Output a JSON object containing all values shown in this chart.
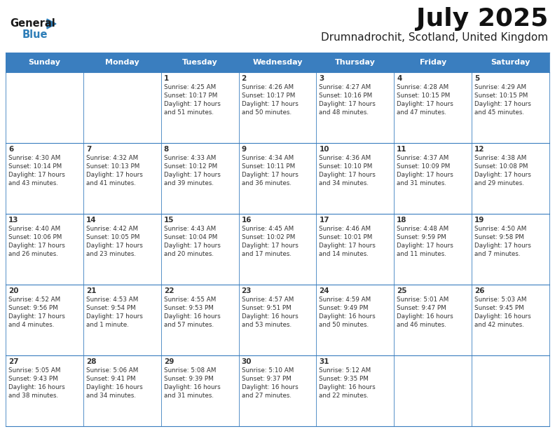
{
  "title": "July 2025",
  "subtitle": "Drumnadrochit, Scotland, United Kingdom",
  "header_color": "#3A7EBF",
  "header_text_color": "#FFFFFF",
  "bg_color": "#FFFFFF",
  "border_color": "#3A7EBF",
  "text_color": "#333333",
  "days_of_week": [
    "Sunday",
    "Monday",
    "Tuesday",
    "Wednesday",
    "Thursday",
    "Friday",
    "Saturday"
  ],
  "weeks": [
    [
      {
        "day": "",
        "info": ""
      },
      {
        "day": "",
        "info": ""
      },
      {
        "day": "1",
        "info": "Sunrise: 4:25 AM\nSunset: 10:17 PM\nDaylight: 17 hours\nand 51 minutes."
      },
      {
        "day": "2",
        "info": "Sunrise: 4:26 AM\nSunset: 10:17 PM\nDaylight: 17 hours\nand 50 minutes."
      },
      {
        "day": "3",
        "info": "Sunrise: 4:27 AM\nSunset: 10:16 PM\nDaylight: 17 hours\nand 48 minutes."
      },
      {
        "day": "4",
        "info": "Sunrise: 4:28 AM\nSunset: 10:15 PM\nDaylight: 17 hours\nand 47 minutes."
      },
      {
        "day": "5",
        "info": "Sunrise: 4:29 AM\nSunset: 10:15 PM\nDaylight: 17 hours\nand 45 minutes."
      }
    ],
    [
      {
        "day": "6",
        "info": "Sunrise: 4:30 AM\nSunset: 10:14 PM\nDaylight: 17 hours\nand 43 minutes."
      },
      {
        "day": "7",
        "info": "Sunrise: 4:32 AM\nSunset: 10:13 PM\nDaylight: 17 hours\nand 41 minutes."
      },
      {
        "day": "8",
        "info": "Sunrise: 4:33 AM\nSunset: 10:12 PM\nDaylight: 17 hours\nand 39 minutes."
      },
      {
        "day": "9",
        "info": "Sunrise: 4:34 AM\nSunset: 10:11 PM\nDaylight: 17 hours\nand 36 minutes."
      },
      {
        "day": "10",
        "info": "Sunrise: 4:36 AM\nSunset: 10:10 PM\nDaylight: 17 hours\nand 34 minutes."
      },
      {
        "day": "11",
        "info": "Sunrise: 4:37 AM\nSunset: 10:09 PM\nDaylight: 17 hours\nand 31 minutes."
      },
      {
        "day": "12",
        "info": "Sunrise: 4:38 AM\nSunset: 10:08 PM\nDaylight: 17 hours\nand 29 minutes."
      }
    ],
    [
      {
        "day": "13",
        "info": "Sunrise: 4:40 AM\nSunset: 10:06 PM\nDaylight: 17 hours\nand 26 minutes."
      },
      {
        "day": "14",
        "info": "Sunrise: 4:42 AM\nSunset: 10:05 PM\nDaylight: 17 hours\nand 23 minutes."
      },
      {
        "day": "15",
        "info": "Sunrise: 4:43 AM\nSunset: 10:04 PM\nDaylight: 17 hours\nand 20 minutes."
      },
      {
        "day": "16",
        "info": "Sunrise: 4:45 AM\nSunset: 10:02 PM\nDaylight: 17 hours\nand 17 minutes."
      },
      {
        "day": "17",
        "info": "Sunrise: 4:46 AM\nSunset: 10:01 PM\nDaylight: 17 hours\nand 14 minutes."
      },
      {
        "day": "18",
        "info": "Sunrise: 4:48 AM\nSunset: 9:59 PM\nDaylight: 17 hours\nand 11 minutes."
      },
      {
        "day": "19",
        "info": "Sunrise: 4:50 AM\nSunset: 9:58 PM\nDaylight: 17 hours\nand 7 minutes."
      }
    ],
    [
      {
        "day": "20",
        "info": "Sunrise: 4:52 AM\nSunset: 9:56 PM\nDaylight: 17 hours\nand 4 minutes."
      },
      {
        "day": "21",
        "info": "Sunrise: 4:53 AM\nSunset: 9:54 PM\nDaylight: 17 hours\nand 1 minute."
      },
      {
        "day": "22",
        "info": "Sunrise: 4:55 AM\nSunset: 9:53 PM\nDaylight: 16 hours\nand 57 minutes."
      },
      {
        "day": "23",
        "info": "Sunrise: 4:57 AM\nSunset: 9:51 PM\nDaylight: 16 hours\nand 53 minutes."
      },
      {
        "day": "24",
        "info": "Sunrise: 4:59 AM\nSunset: 9:49 PM\nDaylight: 16 hours\nand 50 minutes."
      },
      {
        "day": "25",
        "info": "Sunrise: 5:01 AM\nSunset: 9:47 PM\nDaylight: 16 hours\nand 46 minutes."
      },
      {
        "day": "26",
        "info": "Sunrise: 5:03 AM\nSunset: 9:45 PM\nDaylight: 16 hours\nand 42 minutes."
      }
    ],
    [
      {
        "day": "27",
        "info": "Sunrise: 5:05 AM\nSunset: 9:43 PM\nDaylight: 16 hours\nand 38 minutes."
      },
      {
        "day": "28",
        "info": "Sunrise: 5:06 AM\nSunset: 9:41 PM\nDaylight: 16 hours\nand 34 minutes."
      },
      {
        "day": "29",
        "info": "Sunrise: 5:08 AM\nSunset: 9:39 PM\nDaylight: 16 hours\nand 31 minutes."
      },
      {
        "day": "30",
        "info": "Sunrise: 5:10 AM\nSunset: 9:37 PM\nDaylight: 16 hours\nand 27 minutes."
      },
      {
        "day": "31",
        "info": "Sunrise: 5:12 AM\nSunset: 9:35 PM\nDaylight: 16 hours\nand 22 minutes."
      },
      {
        "day": "",
        "info": ""
      },
      {
        "day": "",
        "info": ""
      }
    ]
  ],
  "logo_general_color": "#1A1A1A",
  "logo_blue_color": "#2E7EB8",
  "logo_triangle_color": "#2E7EB8"
}
